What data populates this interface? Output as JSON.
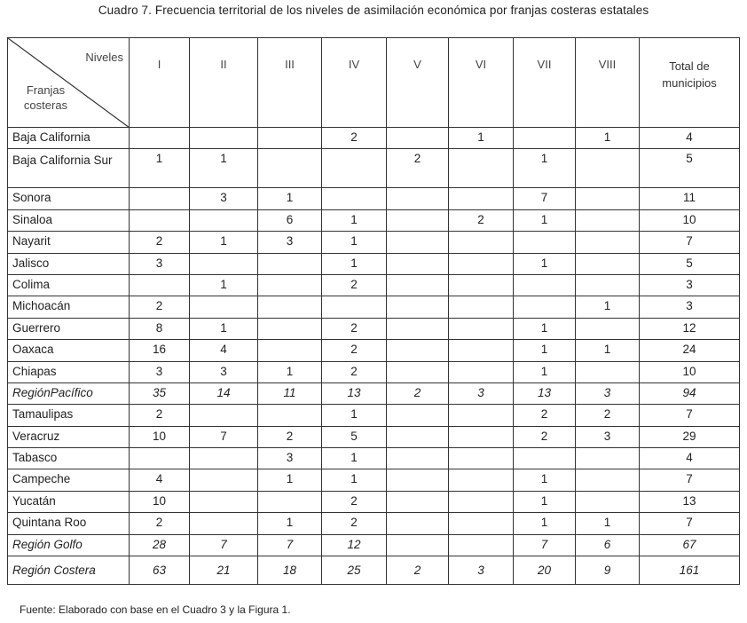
{
  "caption": "Cuadro 7. Frecuencia territorial de los niveles de asimilación económica por franjas costeras estatales",
  "header": {
    "corner_top": "Niveles",
    "corner_bottom": "Franjas costeras",
    "columns": [
      "I",
      "II",
      "III",
      "IV",
      "V",
      "VI",
      "VII",
      "VIII",
      "Total de municipios"
    ]
  },
  "rows": [
    {
      "name": "Baja California",
      "values": [
        "",
        "",
        "",
        "2",
        "",
        "1",
        "",
        "1",
        "4"
      ]
    },
    {
      "name": "Baja California Sur",
      "values": [
        "1",
        "1",
        "",
        "",
        "2",
        "",
        "1",
        "",
        "5"
      ]
    },
    {
      "name": "Sonora",
      "values": [
        "",
        "3",
        "1",
        "",
        "",
        "",
        "7",
        "",
        "11"
      ]
    },
    {
      "name": "Sinaloa",
      "values": [
        "",
        "",
        "6",
        "1",
        "",
        "2",
        "1",
        "",
        "10"
      ]
    },
    {
      "name": "Nayarit",
      "values": [
        "2",
        "1",
        "3",
        "1",
        "",
        "",
        "",
        "",
        "7"
      ]
    },
    {
      "name": "Jalisco",
      "values": [
        "3",
        "",
        "",
        "1",
        "",
        "",
        "1",
        "",
        "5"
      ]
    },
    {
      "name": "Colima",
      "values": [
        "",
        "1",
        "",
        "2",
        "",
        "",
        "",
        "",
        "3"
      ]
    },
    {
      "name": "Michoacán",
      "values": [
        "2",
        "",
        "",
        "",
        "",
        "",
        "",
        "1",
        "3"
      ]
    },
    {
      "name": "Guerrero",
      "values": [
        "8",
        "1",
        "",
        "2",
        "",
        "",
        "1",
        "",
        "12"
      ]
    },
    {
      "name": "Oaxaca",
      "values": [
        "16",
        "4",
        "",
        "2",
        "",
        "",
        "1",
        "1",
        "24"
      ]
    },
    {
      "name": "Chiapas",
      "values": [
        "3",
        "3",
        "1",
        "2",
        "",
        "",
        "1",
        "",
        "10"
      ]
    },
    {
      "name": "RegiónPacífico",
      "region": true,
      "values": [
        "35",
        "14",
        "11",
        "13",
        "2",
        "3",
        "13",
        "3",
        "94"
      ]
    },
    {
      "name": "Tamaulipas",
      "values": [
        "2",
        "",
        "",
        "1",
        "",
        "",
        "2",
        "2",
        "7"
      ]
    },
    {
      "name": "Veracruz",
      "values": [
        "10",
        "7",
        "2",
        "5",
        "",
        "",
        "2",
        "3",
        "29"
      ]
    },
    {
      "name": "Tabasco",
      "values": [
        "",
        "",
        "3",
        "1",
        "",
        "",
        "",
        "",
        "4"
      ]
    },
    {
      "name": "Campeche",
      "values": [
        "4",
        "",
        "1",
        "1",
        "",
        "",
        "1",
        "",
        "7"
      ]
    },
    {
      "name": "Yucatán",
      "values": [
        "10",
        "",
        "",
        "2",
        "",
        "",
        "1",
        "",
        "13"
      ]
    },
    {
      "name": "Quintana Roo",
      "values": [
        "2",
        "",
        "1",
        "2",
        "",
        "",
        "1",
        "1",
        "7"
      ]
    },
    {
      "name": "Región Golfo",
      "region": true,
      "values": [
        "28",
        "7",
        "7",
        "12",
        "",
        "",
        "7",
        "6",
        "67"
      ]
    },
    {
      "name": "Región Costera",
      "region": true,
      "big": true,
      "values": [
        "63",
        "21",
        "18",
        "25",
        "2",
        "3",
        "20",
        "9",
        "161"
      ]
    }
  ],
  "footer": "Fuente: Elaborado con base en el Cuadro 3 y la  Figura 1."
}
